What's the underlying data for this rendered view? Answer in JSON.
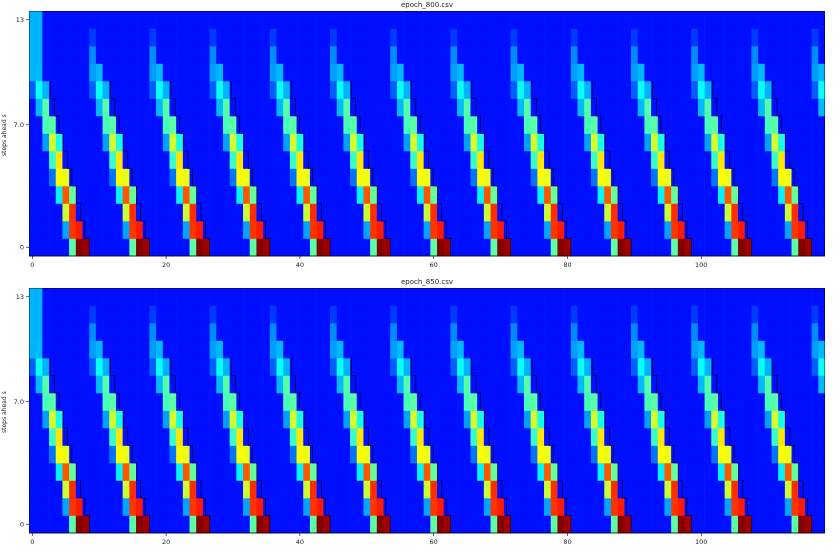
{
  "chart_data": [
    {
      "type": "heatmap",
      "title": "epoch_800.csv",
      "ylabel": "steps ahead s",
      "xlabel": "",
      "x_ticks": [
        "0",
        "20",
        "40",
        "60",
        "80",
        "100"
      ],
      "x_tick_values": [
        0,
        20,
        40,
        60,
        80,
        100
      ],
      "y_ticks": [
        "0",
        "7.0",
        "13"
      ],
      "y_tick_values": [
        0,
        7,
        13
      ],
      "xlim": [
        -0.5,
        118.5
      ],
      "ylim": [
        -0.5,
        13.5
      ],
      "period": 9,
      "colormap": "jet",
      "overlay_line_color": "#000000",
      "grid": false
    },
    {
      "type": "heatmap",
      "title": "epoch_850.csv",
      "ylabel": "steps ahead s",
      "xlabel": "",
      "x_ticks": [
        "0",
        "20",
        "40",
        "60",
        "80",
        "100"
      ],
      "x_tick_values": [
        0,
        20,
        40,
        60,
        80,
        100
      ],
      "y_ticks": [
        "0",
        "7.0",
        "13"
      ],
      "y_tick_values": [
        0,
        7,
        13
      ],
      "xlim": [
        -0.5,
        118.5
      ],
      "ylim": [
        -0.5,
        13.5
      ],
      "period": 9,
      "colormap": "jet",
      "overlay_line_color": "#000000",
      "grid": false
    }
  ]
}
